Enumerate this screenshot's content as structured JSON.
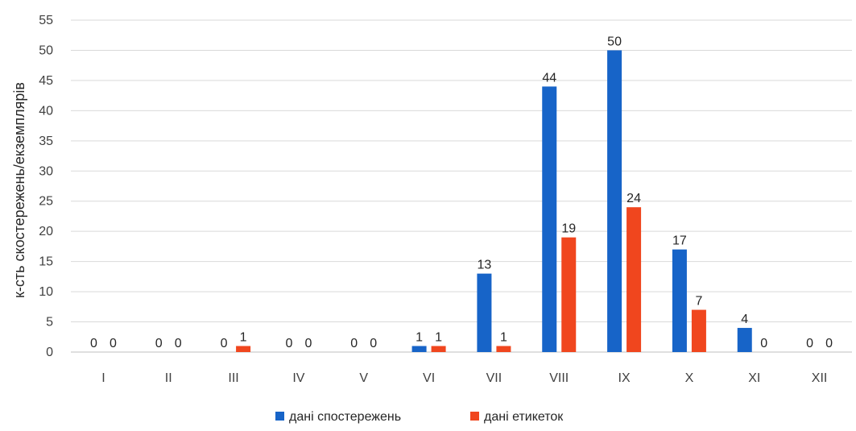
{
  "chart_data": {
    "type": "bar",
    "title": "",
    "xlabel": "",
    "ylabel": "к-сть скостережень/екземплярів",
    "ylim": [
      0,
      55
    ],
    "yticks": [
      0,
      5,
      10,
      15,
      20,
      25,
      30,
      35,
      40,
      45,
      50,
      55
    ],
    "grid": true,
    "legend_position": "bottom",
    "categories": [
      "I",
      "II",
      "III",
      "IV",
      "V",
      "VI",
      "VII",
      "VIII",
      "IX",
      "X",
      "XI",
      "XII"
    ],
    "series": [
      {
        "name": "дані спостережень",
        "color": "#1764c8",
        "values": [
          0,
          0,
          0,
          0,
          0,
          1,
          13,
          44,
          50,
          17,
          4,
          0
        ]
      },
      {
        "name": "дані етикеток",
        "color": "#f0461e",
        "values": [
          0,
          0,
          1,
          0,
          0,
          1,
          1,
          19,
          24,
          7,
          0,
          0
        ]
      }
    ]
  }
}
